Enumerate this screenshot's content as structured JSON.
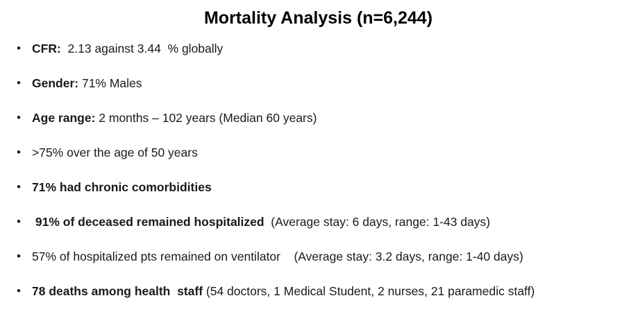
{
  "slide": {
    "title": "Mortality Analysis (n=6,244)",
    "bullet_char": "•",
    "bullets": [
      {
        "bold": "CFR:",
        "text": "  2.13 against 3.44  % globally"
      },
      {
        "bold": "Gender:",
        "text": " 71% Males"
      },
      {
        "bold": "Age range:",
        "text": " 2 months – 102 years (Median 60 years)"
      },
      {
        "bold": "",
        "text": ">75% over the age of 50 years"
      },
      {
        "bold": "71% had chronic comorbidities",
        "text": ""
      },
      {
        "bold": " 91% of deceased remained hospitalized",
        "text": "  (Average stay: 6 days, range: 1-43 days)"
      },
      {
        "bold": "",
        "text": "57% of hospitalized pts remained on ventilator    (Average stay: 3.2 days, range: 1-40 days)"
      },
      {
        "bold": "78 deaths among health  staff",
        "text": " (54 doctors, 1 Medical Student, 2 nurses, 21 paramedic staff)"
      }
    ]
  }
}
